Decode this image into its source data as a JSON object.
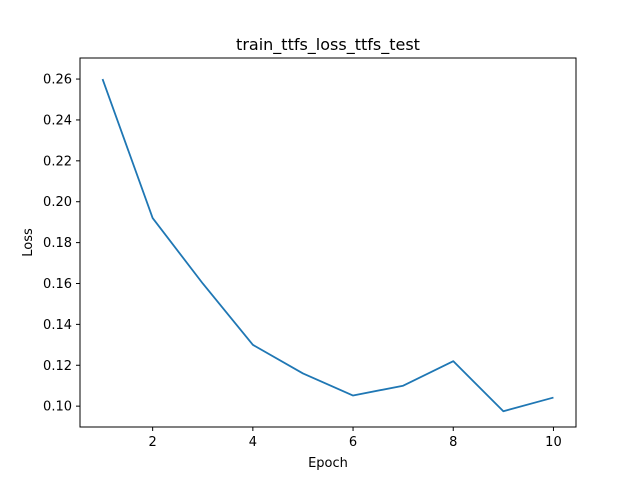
{
  "chart_data": {
    "type": "line",
    "title": "train_ttfs_loss_ttfs_test",
    "xlabel": "Epoch",
    "ylabel": "Loss",
    "xlim": [
      0.55,
      10.45
    ],
    "ylim": [
      0.0898,
      0.2703
    ],
    "xticks": [
      2,
      4,
      6,
      8,
      10
    ],
    "xtick_labels": [
      "2",
      "4",
      "6",
      "8",
      "10"
    ],
    "yticks": [
      0.1,
      0.12,
      0.14,
      0.16,
      0.18,
      0.2,
      0.22,
      0.24,
      0.26
    ],
    "ytick_labels": [
      "0.10",
      "0.12",
      "0.14",
      "0.16",
      "0.18",
      "0.20",
      "0.22",
      "0.24",
      "0.26"
    ],
    "grid": false,
    "series": [
      {
        "color": "#1f77b4",
        "x": [
          1,
          2,
          3,
          4,
          5,
          6,
          7,
          8,
          9,
          10
        ],
        "y": [
          0.26,
          0.192,
          0.16,
          0.13,
          0.116,
          0.1052,
          0.11,
          0.122,
          0.0975,
          0.1042
        ]
      }
    ]
  }
}
